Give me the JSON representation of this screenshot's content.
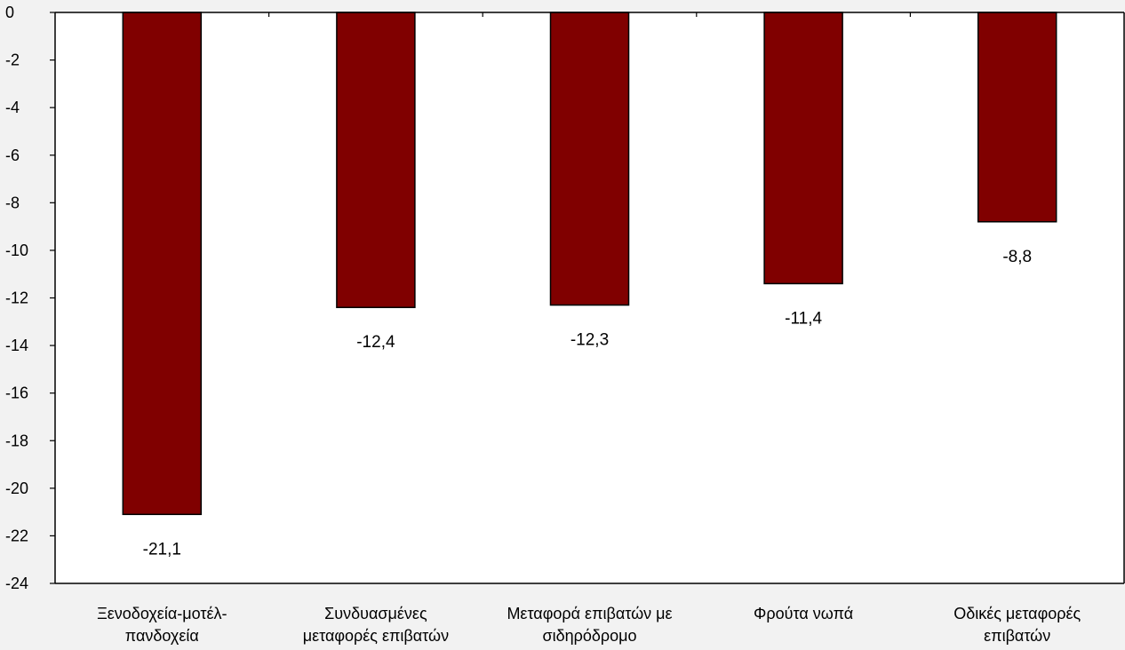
{
  "chart_data": {
    "type": "bar",
    "categories": [
      [
        "Ξενοδοχεία-μοτέλ-",
        "πανδοχεία"
      ],
      [
        "Συνδυασμένες",
        "μεταφορές επιβατών"
      ],
      [
        "Μεταφορά επιβατών με",
        "σιδηρόδρομο"
      ],
      [
        "Φρούτα νωπά"
      ],
      [
        "Οδικές μεταφορές",
        "επιβατών"
      ]
    ],
    "values": [
      -21.1,
      -12.4,
      -12.3,
      -11.4,
      -8.8
    ],
    "data_labels": [
      "-21,1",
      "-12,4",
      "-12,3",
      "-11,4",
      "-8,8"
    ],
    "ylim": [
      -24,
      0
    ],
    "yticks": [
      0,
      -2,
      -4,
      -6,
      -8,
      -10,
      -12,
      -14,
      -16,
      -18,
      -20,
      -22,
      -24
    ],
    "title": "",
    "xlabel": "",
    "ylabel": "",
    "grid": false,
    "colors": {
      "bar_fill": "#800000",
      "bar_stroke": "#000000",
      "plot_background": "#ffffff",
      "page_background": "#f2f2f2"
    }
  }
}
